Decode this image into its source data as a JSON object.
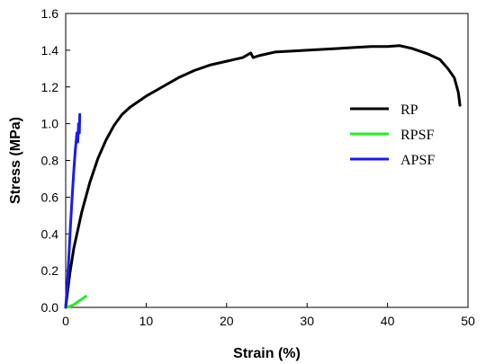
{
  "chart_data": {
    "type": "line",
    "title": "",
    "xlabel": "Strain (%)",
    "ylabel": "Stress (MPa)",
    "xlim": [
      0,
      50
    ],
    "ylim": [
      0,
      1.6
    ],
    "xticks": [
      "0",
      "10",
      "20",
      "30",
      "40",
      "50"
    ],
    "yticks": [
      "0.0",
      "0.2",
      "0.4",
      "0.6",
      "0.8",
      "1.0",
      "1.2",
      "1.4",
      "1.6"
    ],
    "grid": false,
    "legend_position": "right",
    "series": [
      {
        "name": "RP",
        "color": "#000000",
        "x": [
          0,
          0.5,
          1,
          2,
          3,
          4,
          5,
          6,
          7,
          8,
          9,
          10,
          12,
          14,
          16,
          18,
          20,
          22,
          23,
          23.3,
          24,
          26,
          28,
          30,
          32,
          34,
          36,
          38,
          40,
          41.5,
          43,
          45,
          46.5,
          47.5,
          48.3,
          48.8,
          49
        ],
        "y": [
          0,
          0.18,
          0.32,
          0.52,
          0.68,
          0.81,
          0.91,
          0.99,
          1.05,
          1.09,
          1.12,
          1.15,
          1.2,
          1.25,
          1.29,
          1.32,
          1.34,
          1.36,
          1.385,
          1.36,
          1.37,
          1.39,
          1.395,
          1.4,
          1.405,
          1.41,
          1.415,
          1.42,
          1.42,
          1.425,
          1.41,
          1.38,
          1.35,
          1.3,
          1.25,
          1.17,
          1.1
        ]
      },
      {
        "name": "RPSF",
        "color": "#22ee22",
        "x": [
          0,
          0.5,
          1,
          1.5,
          2,
          2.5
        ],
        "y": [
          0,
          0.005,
          0.015,
          0.03,
          0.045,
          0.06
        ]
      },
      {
        "name": "APSF",
        "color": "#1a1aee",
        "x": [
          0,
          0.2,
          0.4,
          0.6,
          0.8,
          1.0,
          1.2,
          1.4,
          1.5,
          1.6,
          1.7,
          1.75
        ],
        "y": [
          0,
          0.12,
          0.28,
          0.45,
          0.6,
          0.74,
          0.86,
          0.95,
          0.9,
          1.0,
          0.95,
          1.05
        ]
      }
    ]
  }
}
